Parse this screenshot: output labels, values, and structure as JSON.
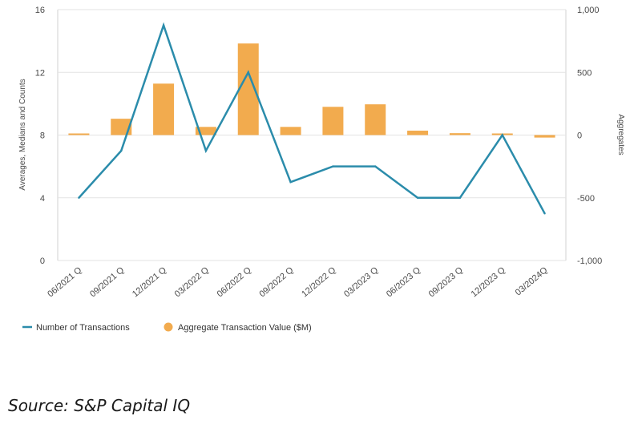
{
  "chart_data": {
    "type": "bar+line",
    "categories": [
      "06/2021 Q",
      "09/2021 Q",
      "12/2021 Q",
      "03/2022 Q",
      "06/2022 Q",
      "09/2022 Q",
      "12/2022 Q",
      "03/2023 Q",
      "06/2023 Q",
      "09/2023 Q",
      "12/2023 Q",
      "03/2024Q"
    ],
    "series": [
      {
        "name": "Number of Transactions",
        "kind": "line",
        "axis": "left",
        "color": "#2b8cab",
        "values": [
          4,
          7,
          15,
          7,
          12,
          5,
          6,
          6,
          4,
          4,
          8,
          3
        ]
      },
      {
        "name": "Aggregate Transaction Value ($M)",
        "kind": "bar",
        "axis": "right",
        "color": "#f2ab4e",
        "values": [
          5,
          130,
          410,
          65,
          730,
          65,
          225,
          245,
          35,
          15,
          0,
          -20
        ]
      }
    ],
    "y_left": {
      "label": "Averages, Medians and Counts",
      "ylim": [
        0,
        16
      ],
      "ticks": [
        "0",
        "4",
        "8",
        "12",
        "16"
      ]
    },
    "y_right": {
      "label": "Aggregates",
      "ylim": [
        -1000,
        1000
      ],
      "ticks": [
        "-1,000",
        "-500",
        "0",
        "500",
        "1,000"
      ]
    },
    "grid": true,
    "legend_position": "bottom-left"
  },
  "source": "Source: S&P Capital IQ"
}
